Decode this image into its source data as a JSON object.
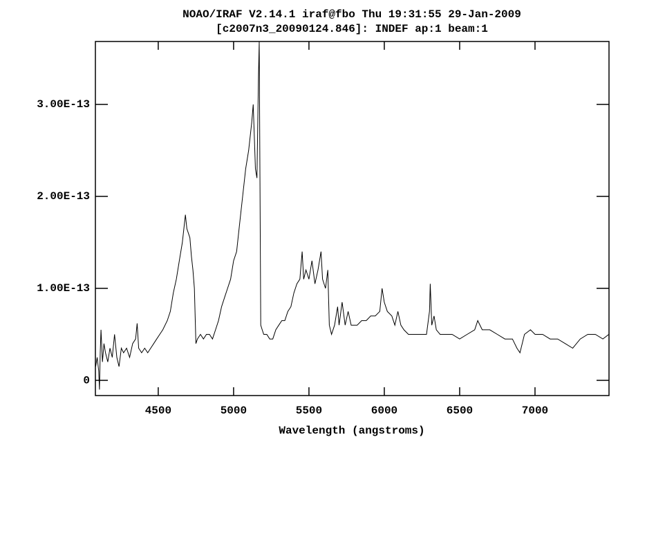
{
  "chart_data": {
    "type": "line",
    "title": "NOAO/IRAF V2.14.1 iraf@fbo Thu 19:31:55 29-Jan-2009",
    "subtitle": "[c2007n3_20090124.846]:  INDEF ap:1 beam:1",
    "x_label": "Wavelength (angstroms)",
    "xlim": [
      4083,
      7491
    ],
    "ylim": [
      -1.65e-14,
      3.684e-13
    ],
    "xticks": [
      4500,
      5000,
      5500,
      6000,
      6500,
      7000
    ],
    "yticks": [
      0,
      {
        "value": 1e-13,
        "label": "1.00E-13"
      },
      {
        "value": 2e-13,
        "label": "2.00E-13"
      },
      {
        "value": 3e-13,
        "label": "3.00E-13"
      }
    ],
    "series": [
      {
        "color": "#000000",
        "x": [
          4085,
          4095,
          4105,
          4110,
          4115,
          4120,
          4130,
          4140,
          4150,
          4165,
          4180,
          4195,
          4210,
          4225,
          4240,
          4255,
          4270,
          4290,
          4310,
          4330,
          4350,
          4360,
          4370,
          4390,
          4410,
          4430,
          4450,
          4470,
          4490,
          4510,
          4530,
          4560,
          4580,
          4600,
          4620,
          4640,
          4660,
          4680,
          4690,
          4700,
          4710,
          4720,
          4730,
          4740,
          4750,
          4760,
          4780,
          4800,
          4820,
          4840,
          4860,
          4880,
          4900,
          4920,
          4940,
          4960,
          4980,
          5000,
          5020,
          5040,
          5060,
          5080,
          5100,
          5120,
          5130,
          5145,
          5155,
          5165,
          5170,
          5180,
          5190,
          5200,
          5220,
          5240,
          5260,
          5280,
          5300,
          5320,
          5340,
          5360,
          5380,
          5400,
          5420,
          5440,
          5455,
          5465,
          5480,
          5500,
          5520,
          5540,
          5560,
          5580,
          5590,
          5610,
          5625,
          5635,
          5650,
          5670,
          5690,
          5700,
          5720,
          5740,
          5760,
          5780,
          5800,
          5820,
          5850,
          5880,
          5910,
          5940,
          5970,
          5985,
          6000,
          6020,
          6050,
          6070,
          6090,
          6110,
          6130,
          6160,
          6190,
          6220,
          6250,
          6280,
          6300,
          6305,
          6315,
          6330,
          6345,
          6370,
          6400,
          6450,
          6500,
          6550,
          6600,
          6620,
          6650,
          6700,
          6750,
          6800,
          6850,
          6880,
          6900,
          6930,
          6970,
          7000,
          7050,
          7100,
          7150,
          7200,
          7250,
          7300,
          7350,
          7400,
          7450,
          7490
        ],
        "values": [
          1.5e-14,
          2.5e-14,
          1e-14,
          -1e-14,
          3e-14,
          5.5e-14,
          2e-14,
          4e-14,
          3e-14,
          2e-14,
          3.5e-14,
          2.5e-14,
          5e-14,
          2.5e-14,
          1.5e-14,
          3.5e-14,
          3e-14,
          3.5e-14,
          2.5e-14,
          4e-14,
          4.5e-14,
          6.2e-14,
          3.5e-14,
          3e-14,
          3.5e-14,
          3e-14,
          3.5e-14,
          4e-14,
          4.5e-14,
          5e-14,
          5.5e-14,
          6.5e-14,
          7.5e-14,
          9.5e-14,
          1.1e-13,
          1.3e-13,
          1.5e-13,
          1.8e-13,
          1.65e-13,
          1.6e-13,
          1.55e-13,
          1.35e-13,
          1.2e-13,
          1e-13,
          4e-14,
          4.5e-14,
          5e-14,
          4.5e-14,
          5e-14,
          5e-14,
          4.5e-14,
          5.5e-14,
          6.5e-14,
          8e-14,
          9e-14,
          1e-13,
          1.1e-13,
          1.3e-13,
          1.4e-13,
          1.7e-13,
          2e-13,
          2.3e-13,
          2.5e-13,
          2.8e-13,
          3e-13,
          2.3e-13,
          2.2e-13,
          3.3e-13,
          3.68e-13,
          6e-14,
          5.5e-14,
          5e-14,
          5e-14,
          4.5e-14,
          4.5e-14,
          5.5e-14,
          6e-14,
          6.5e-14,
          6.5e-14,
          7.5e-14,
          8e-14,
          9.5e-14,
          1.05e-13,
          1.1e-13,
          1.4e-13,
          1.1e-13,
          1.2e-13,
          1.1e-13,
          1.3e-13,
          1.05e-13,
          1.2e-13,
          1.4e-13,
          1.1e-13,
          1e-13,
          1.2e-13,
          6e-14,
          5e-14,
          6e-14,
          8e-14,
          6e-14,
          8.5e-14,
          6e-14,
          7.5e-14,
          6e-14,
          6e-14,
          6e-14,
          6.5e-14,
          6.5e-14,
          7e-14,
          7e-14,
          7.5e-14,
          1e-13,
          8.5e-14,
          7.5e-14,
          7e-14,
          6e-14,
          7.5e-14,
          6e-14,
          5.5e-14,
          5e-14,
          5e-14,
          5e-14,
          5e-14,
          5e-14,
          7.5e-14,
          1.05e-13,
          6e-14,
          7e-14,
          5.5e-14,
          5e-14,
          5e-14,
          5e-14,
          4.5e-14,
          5e-14,
          5.5e-14,
          6.5e-14,
          5.5e-14,
          5.5e-14,
          5e-14,
          4.5e-14,
          4.5e-14,
          3.5e-14,
          3e-14,
          5e-14,
          5.5e-14,
          5e-14,
          5e-14,
          4.5e-14,
          4.5e-14,
          4e-14,
          3.5e-14,
          4.5e-14,
          5e-14,
          5e-14,
          4.5e-14,
          5e-14
        ]
      }
    ]
  }
}
